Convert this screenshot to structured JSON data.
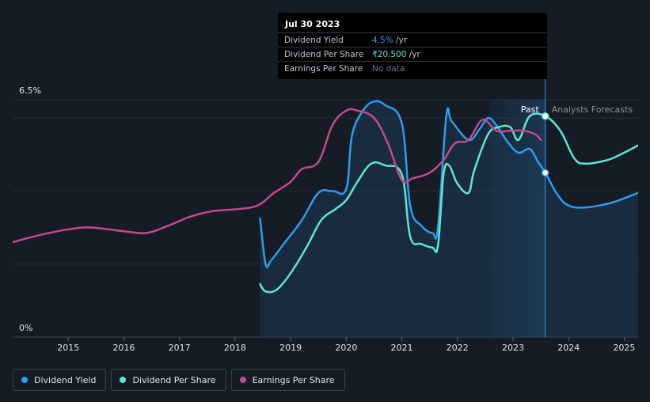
{
  "chart_data": {
    "type": "line",
    "x_ticks": [
      "2015",
      "2016",
      "2017",
      "2018",
      "2019",
      "2020",
      "2021",
      "2022",
      "2023",
      "2024",
      "2025"
    ],
    "xlim": [
      2014.0,
      2025.25
    ],
    "y_labels": {
      "top": "6.5%",
      "bottom": "0%"
    },
    "ylim": [
      0,
      6.5
    ],
    "past_label": "Past",
    "forecast_label": "Analysts Forecasts",
    "forecast_start": 2023.58,
    "shaded_band_start": 2022.57,
    "series": [
      {
        "name": "Dividend Yield",
        "color": "#2e9bef",
        "filled": true,
        "values": [
          [
            2018.45,
            3.25
          ],
          [
            2018.55,
            2.0
          ],
          [
            2018.65,
            2.1
          ],
          [
            2018.9,
            2.6
          ],
          [
            2019.2,
            3.2
          ],
          [
            2019.5,
            3.95
          ],
          [
            2019.75,
            4.0
          ],
          [
            2020.0,
            4.05
          ],
          [
            2020.1,
            5.5
          ],
          [
            2020.3,
            6.2
          ],
          [
            2020.5,
            6.45
          ],
          [
            2020.7,
            6.35
          ],
          [
            2021.0,
            5.85
          ],
          [
            2021.15,
            3.6
          ],
          [
            2021.35,
            3.05
          ],
          [
            2021.55,
            2.85
          ],
          [
            2021.65,
            3.0
          ],
          [
            2021.8,
            6.05
          ],
          [
            2021.9,
            5.9
          ],
          [
            2022.2,
            5.4
          ],
          [
            2022.4,
            5.7
          ],
          [
            2022.55,
            6.0
          ],
          [
            2022.7,
            5.8
          ],
          [
            2022.9,
            5.35
          ],
          [
            2023.1,
            5.05
          ],
          [
            2023.3,
            5.15
          ],
          [
            2023.45,
            4.8
          ],
          [
            2023.58,
            4.5
          ],
          [
            2023.8,
            3.9
          ],
          [
            2024.0,
            3.6
          ],
          [
            2024.3,
            3.55
          ],
          [
            2024.7,
            3.65
          ],
          [
            2025.0,
            3.8
          ],
          [
            2025.25,
            3.95
          ]
        ]
      },
      {
        "name": "Dividend Per Share",
        "color": "#5ee6d2",
        "filled": false,
        "values": [
          [
            2018.45,
            1.45
          ],
          [
            2018.55,
            1.25
          ],
          [
            2018.75,
            1.3
          ],
          [
            2019.0,
            1.75
          ],
          [
            2019.3,
            2.5
          ],
          [
            2019.55,
            3.2
          ],
          [
            2019.8,
            3.5
          ],
          [
            2020.0,
            3.75
          ],
          [
            2020.2,
            4.25
          ],
          [
            2020.45,
            4.75
          ],
          [
            2020.7,
            4.7
          ],
          [
            2021.0,
            4.45
          ],
          [
            2021.15,
            2.75
          ],
          [
            2021.35,
            2.55
          ],
          [
            2021.55,
            2.45
          ],
          [
            2021.65,
            2.5
          ],
          [
            2021.75,
            4.45
          ],
          [
            2021.85,
            4.7
          ],
          [
            2022.0,
            4.2
          ],
          [
            2022.2,
            3.95
          ],
          [
            2022.3,
            4.55
          ],
          [
            2022.55,
            5.55
          ],
          [
            2022.75,
            5.75
          ],
          [
            2022.95,
            5.75
          ],
          [
            2023.1,
            5.4
          ],
          [
            2023.3,
            6.05
          ],
          [
            2023.58,
            6.05
          ],
          [
            2023.85,
            5.65
          ],
          [
            2024.1,
            4.9
          ],
          [
            2024.3,
            4.75
          ],
          [
            2024.7,
            4.85
          ],
          [
            2025.0,
            5.05
          ],
          [
            2025.25,
            5.25
          ]
        ]
      },
      {
        "name": "Earnings Per Share",
        "color": "#c4498b",
        "filled": false,
        "values": [
          [
            2014.0,
            2.6
          ],
          [
            2014.5,
            2.8
          ],
          [
            2015.0,
            2.95
          ],
          [
            2015.4,
            3.0
          ],
          [
            2016.0,
            2.9
          ],
          [
            2016.4,
            2.85
          ],
          [
            2016.8,
            3.05
          ],
          [
            2017.2,
            3.3
          ],
          [
            2017.6,
            3.45
          ],
          [
            2018.0,
            3.5
          ],
          [
            2018.4,
            3.6
          ],
          [
            2018.7,
            3.95
          ],
          [
            2019.0,
            4.25
          ],
          [
            2019.2,
            4.6
          ],
          [
            2019.5,
            4.8
          ],
          [
            2019.75,
            5.8
          ],
          [
            2020.0,
            6.2
          ],
          [
            2020.2,
            6.2
          ],
          [
            2020.5,
            6.0
          ],
          [
            2020.75,
            5.3
          ],
          [
            2021.0,
            4.3
          ],
          [
            2021.2,
            4.35
          ],
          [
            2021.5,
            4.5
          ],
          [
            2021.75,
            4.85
          ],
          [
            2021.95,
            5.3
          ],
          [
            2022.2,
            5.4
          ],
          [
            2022.45,
            5.95
          ],
          [
            2022.7,
            5.65
          ],
          [
            2022.95,
            5.65
          ],
          [
            2023.2,
            5.65
          ],
          [
            2023.4,
            5.55
          ],
          [
            2023.5,
            5.4
          ]
        ]
      }
    ],
    "marker_points": [
      {
        "series": "Dividend Yield",
        "x": 2023.58,
        "y": 4.5
      },
      {
        "series": "Dividend Per Share",
        "x": 2023.58,
        "y": 6.05
      }
    ]
  },
  "tooltip": {
    "date": "Jul 30 2023",
    "rows": [
      {
        "label": "Dividend Yield",
        "value": "4.5%",
        "suffix": " /yr",
        "color": "#2e9bef"
      },
      {
        "label": "Dividend Per Share",
        "value": "₹20.500",
        "suffix": " /yr",
        "color": "#5ee6d2"
      },
      {
        "label": "Earnings Per Share",
        "value": "No data",
        "suffix": "",
        "color": "#6b7280"
      }
    ]
  },
  "legend": [
    {
      "label": "Dividend Yield",
      "color": "#2e9bef"
    },
    {
      "label": "Dividend Per Share",
      "color": "#5ee6d2"
    },
    {
      "label": "Earnings Per Share",
      "color": "#c4498b"
    }
  ]
}
